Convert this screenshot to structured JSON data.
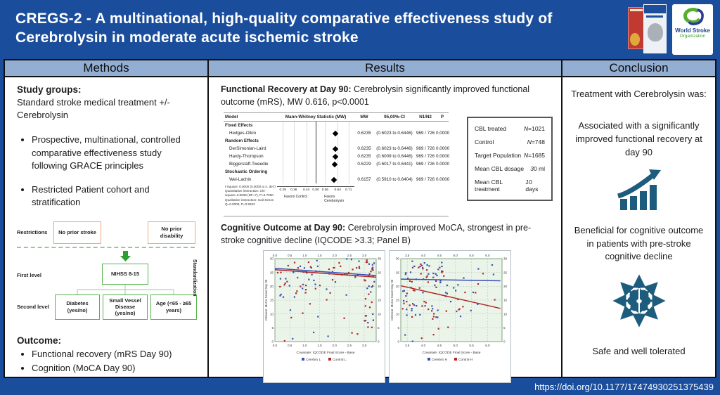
{
  "header": {
    "title": "CREGS-2 - A multinational, high-quality comparative effectiveness study of Cerebrolysin in moderate acute ischemic stroke",
    "wso_logo_line1": "World Stroke",
    "wso_logo_line2": "Organization"
  },
  "column_headers": {
    "methods": "Methods",
    "results": "Results",
    "conclusion": "Conclusion"
  },
  "methods": {
    "study_groups_heading": "Study groups:",
    "study_groups_text": "Standard stroke medical treatment +/- Cerebrolysin",
    "bullets": [
      "Prospective, multinational, controlled comparative effectiveness study following GRACE principles",
      "Restricted Patient cohort and stratification"
    ],
    "flowchart": {
      "restrictions_label": "Restrictions",
      "restriction_box_1": "No prior stroke",
      "restriction_box_2": "No prior disability",
      "first_level_label": "First level",
      "first_level_box": "NIHSS 8-15",
      "second_level_label": "Second level",
      "second_level_box_1": "Diabetes (yes/no)",
      "second_level_box_2": "Small Vessel Disease (yes/no)",
      "second_level_box_3": "Age (<65 - ≥65 years)",
      "standardization_label": "Standardization"
    },
    "outcome_heading": "Outcome:",
    "outcome_bullets": [
      "Functional recovery (mRS Day 90)",
      "Cognition (MoCA Day 90)"
    ]
  },
  "results": {
    "functional_heading": "Functional Recovery at Day 90:",
    "functional_text": "Cerebrolysin significantly improved functional outcome (mRS), MW 0.616, p<0.0001",
    "cognitive_heading": "Cognitive Outcome at Day 90:",
    "cognitive_text": "Cerebrolysin improved MoCA, strongest in pre-stroke cognitive decline (IQCODE >3.3; Panel B)",
    "stats_table": {
      "rows": [
        {
          "label": "CBL treated",
          "value": "N=1021"
        },
        {
          "label": "Control",
          "value": "N=748"
        },
        {
          "label": "Target Population",
          "value": "N=1685"
        },
        {
          "label": "Mean CBL dosage",
          "value": "30 ml"
        },
        {
          "label": "Mean CBL treatment",
          "value": "10 days"
        }
      ]
    }
  },
  "chart_data": [
    {
      "type": "forest",
      "columns": [
        "Model",
        "Mann-Whitney Statistic (MW)",
        "MW",
        "95,00%-CI",
        "N1/N2",
        "P"
      ],
      "axis": {
        "min": 0.2533,
        "max": 0.7467,
        "ticks": [
          0.29,
          0.36,
          0.44,
          0.5,
          0.56,
          0.64,
          0.71
        ],
        "ref_line": 0.5
      },
      "rows": [
        {
          "type": "group",
          "label": "Fixed Effects"
        },
        {
          "type": "data",
          "label": "Hedges-Olkin",
          "mw": 0.6235,
          "mw_text": "0.6235",
          "ci": "(0.6023 to 0.6446)",
          "n": "969 / 726",
          "p": "0.0000"
        },
        {
          "type": "group",
          "label": "Random Effects"
        },
        {
          "type": "data",
          "label": "DerSimonian-Laird",
          "mw": 0.6235,
          "mw_text": "0.6235",
          "ci": "(0.6023 to 0.6446)",
          "n": "969 / 726",
          "p": "0.0000"
        },
        {
          "type": "data",
          "label": "Hardy-Thompson",
          "mw": 0.6235,
          "mw_text": "0.6235",
          "ci": "(0.6009 to 0.6446)",
          "n": "969 / 726",
          "p": "0.0000"
        },
        {
          "type": "data",
          "label": "Biggerstaff-Tweedie",
          "mw": 0.6229,
          "mw_text": "0.6229",
          "ci": "(0.6017 to 0.6441)",
          "n": "969 / 726",
          "p": "0.0000"
        },
        {
          "type": "group",
          "label": "Stochastic Ordering"
        },
        {
          "type": "data",
          "label": "Wei-Lachin",
          "mw": 0.6157,
          "mw_text": "0.6157",
          "ci": "(0.5910 to 0.6404)",
          "n": "969 / 726",
          "p": "0.0000"
        }
      ],
      "footnote": "I-Square: 0.0000 (0.0000 to n. def.)\nQuantitative interaction: Chi-square=3.8639 (DF=7), P=0.7690\nQualitative interaction: Gail-Simon Q=0.0000, P=0.9922",
      "favors_left": "Favors Control",
      "favors_right": "Favors Cerebrolysin"
    },
    {
      "type": "scatter",
      "panel": "A",
      "xlabel": "Covariate: IQCODE Final Score - Base",
      "ylabel": "Criterion: MoCa Score Day 90",
      "xlim": [
        0,
        3.4
      ],
      "ylim": [
        0,
        30
      ],
      "xticks": [
        0.0,
        0.5,
        1.0,
        1.5,
        2.0,
        2.5,
        3.0
      ],
      "yticks": [
        0,
        5,
        10,
        15,
        20,
        25,
        30
      ],
      "grid": true,
      "series": [
        {
          "name": "Cerebro L",
          "color": "#3a50b5",
          "trend": {
            "x1": 0,
            "y1": 26.5,
            "x2": 3.4,
            "y2": 23.9
          }
        },
        {
          "name": "Control L",
          "color": "#b22626",
          "trend": {
            "x1": 0,
            "y1": 26.0,
            "x2": 3.4,
            "y2": 23.3
          }
        }
      ],
      "seed": 42,
      "clusters": [
        {
          "n": 70,
          "x": [
            0.02,
            3.35
          ],
          "y": [
            19,
            30
          ]
        },
        {
          "n": 25,
          "x": [
            2.95,
            3.35
          ],
          "y": [
            4,
            27
          ]
        },
        {
          "n": 18,
          "x": [
            0.05,
            2.6
          ],
          "y": [
            8,
            19
          ]
        },
        {
          "n": 6,
          "x": [
            0.2,
            3.3
          ],
          "y": [
            0,
            7
          ]
        }
      ]
    },
    {
      "type": "scatter",
      "panel": "B",
      "xlabel": "Covariate: IQCODE Final Score - Base",
      "ylabel": "Criterion: MoCa Score Day 90",
      "xlim": [
        3.3,
        6.45
      ],
      "ylim": [
        0,
        30
      ],
      "xticks": [
        3.5,
        4.0,
        4.5,
        5.0,
        5.5,
        6.0
      ],
      "yticks": [
        0,
        5,
        10,
        15,
        20,
        25,
        30
      ],
      "grid": true,
      "series": [
        {
          "name": "Cerebro H",
          "color": "#3a50b5",
          "trend": {
            "x1": 3.3,
            "y1": 22.6,
            "x2": 6.4,
            "y2": 22.0
          }
        },
        {
          "name": "Control H",
          "color": "#b22626",
          "trend": {
            "x1": 3.3,
            "y1": 20.2,
            "x2": 6.4,
            "y2": 12.0
          }
        }
      ],
      "seed": 43,
      "clusters": [
        {
          "n": 80,
          "x": [
            3.32,
            4.6
          ],
          "y": [
            8,
            30
          ]
        },
        {
          "n": 20,
          "x": [
            4.6,
            5.6
          ],
          "y": [
            5,
            25
          ]
        },
        {
          "n": 8,
          "x": [
            5.6,
            6.35
          ],
          "y": [
            12,
            28
          ]
        },
        {
          "n": 6,
          "x": [
            3.4,
            5.2
          ],
          "y": [
            0,
            7
          ]
        }
      ]
    }
  ],
  "conclusion": {
    "intro": "Treatment with Cerebrolysin was:",
    "item1": "Associated with a significantly improved functional recovery at day 90",
    "item2": "Beneficial for cognitive outcome in patients with pre-stroke cognitive decline",
    "item3": "Safe and well tolerated"
  },
  "footer": {
    "doi": "https://doi.org/10.1177/17474930251375439"
  },
  "colors": {
    "brand_blue": "#1a4e9c",
    "header_cell_blue": "#92aed3",
    "accent_teal": "#1d5c7d",
    "flow_orange": "#f0a878",
    "flow_green": "#58b24e",
    "point_blue": "#3a50b5",
    "point_red": "#b22626"
  }
}
